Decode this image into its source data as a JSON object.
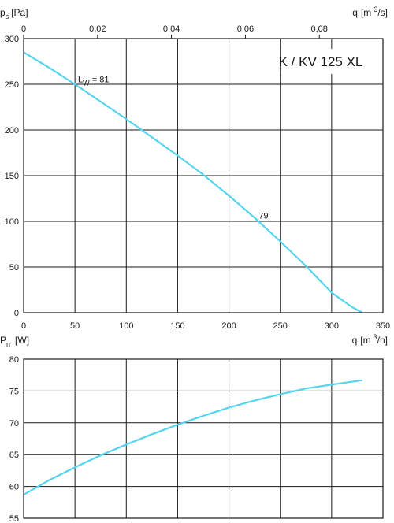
{
  "chart_data": [
    {
      "type": "line",
      "title": "K / KV 125 XL",
      "ylabel": {
        "main": "p",
        "sub": "s",
        "unit": "[Pa]"
      },
      "xlabel_bottom": {
        "main": "q",
        "unit_pre": "[m",
        "sup": "3",
        "unit_post": "/h]"
      },
      "xlabel_top": {
        "main": "q",
        "unit_pre": "[m",
        "sup": "3",
        "unit_post": "/s]"
      },
      "xlim": [
        0,
        350
      ],
      "ylim": [
        0,
        300
      ],
      "xticks": [
        "0",
        "50",
        "100",
        "150",
        "200",
        "250",
        "300",
        "350"
      ],
      "yticks": [
        "0",
        "50",
        "100",
        "150",
        "200",
        "250",
        "300"
      ],
      "top_xticks": [
        {
          "value": 0,
          "label": "0"
        },
        {
          "value": 0.02,
          "label": "0,02"
        },
        {
          "value": 0.04,
          "label": "0,04"
        },
        {
          "value": 0.06,
          "label": "0,06"
        },
        {
          "value": 0.08,
          "label": "0,08"
        }
      ],
      "grid": true,
      "color": "#55d4ee",
      "series": [
        {
          "x": [
            0,
            25,
            50,
            75,
            100,
            125,
            150,
            175,
            200,
            225,
            250,
            275,
            300,
            320,
            330
          ],
          "values": [
            285,
            268,
            250,
            231,
            212,
            192,
            172,
            151,
            128,
            104,
            78,
            51,
            22,
            6,
            0
          ]
        }
      ],
      "annotations": [
        {
          "label_main": "L",
          "label_sub": "W",
          "label_rest": " = 81",
          "x": 53,
          "y": 252
        },
        {
          "label_main": "79",
          "x": 229,
          "y": 103
        }
      ]
    },
    {
      "type": "line",
      "ylabel": {
        "main": "P",
        "sub": "n",
        "unit": "[W]"
      },
      "xlim": [
        0,
        350
      ],
      "ylim": [
        55,
        80
      ],
      "yticks": [
        "55",
        "60",
        "65",
        "70",
        "75",
        "80"
      ],
      "grid": true,
      "color": "#55d4ee",
      "series": [
        {
          "x": [
            0,
            25,
            50,
            75,
            100,
            125,
            150,
            175,
            200,
            225,
            250,
            275,
            300,
            330
          ],
          "values": [
            58.7,
            61.0,
            63.0,
            64.9,
            66.6,
            68.2,
            69.7,
            71.1,
            72.4,
            73.5,
            74.5,
            75.4,
            76.0,
            76.7
          ]
        }
      ]
    }
  ]
}
